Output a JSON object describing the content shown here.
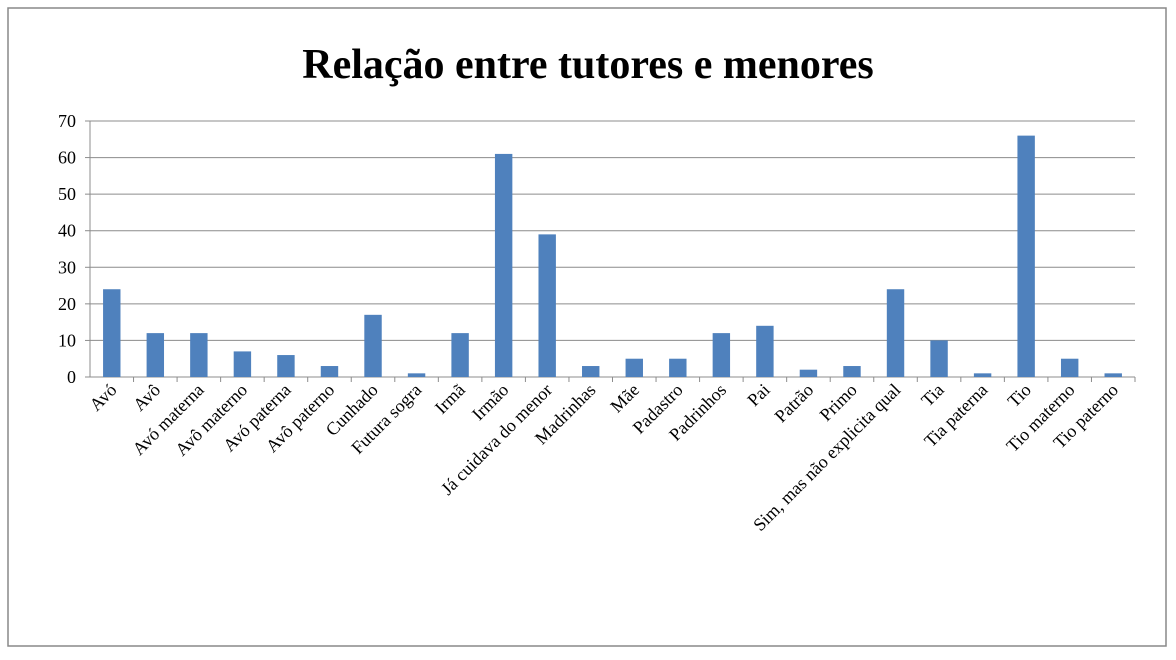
{
  "chart_data": {
    "type": "bar",
    "title": "Relação entre tutores e menores",
    "categories": [
      "Avó",
      "Avô",
      "Avó materna",
      "Avô materno",
      "Avó paterna",
      "Avô paterno",
      "Cunhado",
      "Futura sogra",
      "Irmã",
      "Irmão",
      "Já cuidava do menor",
      "Madrinhas",
      "Mãe",
      "Padastro",
      "Padrinhos",
      "Pai",
      "Patrão",
      "Primo",
      "Sim, mas não explicita qual",
      "Tia",
      "Tia paterna",
      "Tio",
      "Tio materno",
      "Tio paterno"
    ],
    "values": [
      24,
      12,
      12,
      7,
      6,
      3,
      17,
      1,
      12,
      61,
      39,
      3,
      5,
      5,
      12,
      14,
      2,
      3,
      24,
      10,
      1,
      66,
      5,
      1
    ],
    "color": "#4f81bd",
    "ylim": [
      0,
      70
    ],
    "yticks": [
      0,
      10,
      20,
      30,
      40,
      50,
      60,
      70
    ],
    "grid": true
  }
}
